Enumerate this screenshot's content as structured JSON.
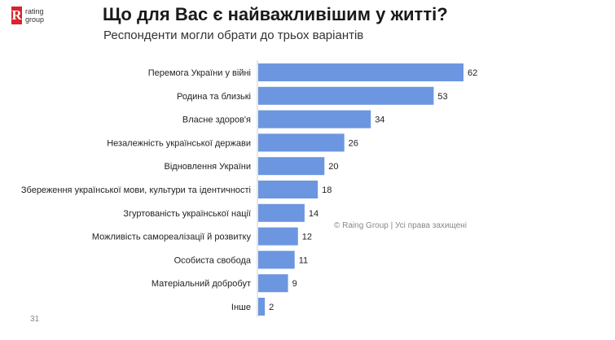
{
  "logo": {
    "mark": "R",
    "text": "rating\ngroup"
  },
  "title": "Що для Вас є найважливішим у житті?",
  "subtitle": "Респонденти могли обрати до трьох варіантів",
  "copyright": "© Raing Group | Усі права захищені",
  "page_number": "31",
  "colors": {
    "bar": "#6c96e0",
    "axis": "#cccccc",
    "logo": "#d9232e"
  },
  "chart_data": {
    "type": "bar",
    "orientation": "horizontal",
    "title": "Що для Вас є найважливішим у житті?",
    "subtitle": "Респонденти могли обрати до трьох варіантів",
    "xlabel": "",
    "ylabel": "",
    "xlim": [
      0,
      62
    ],
    "grid": false,
    "categories": [
      "Перемога України у війні",
      "Родина та близькі",
      "Власне здоров'я",
      "Незалежність української держави",
      "Відновлення України",
      "Збереження української мови, культури та ідентичності",
      "Згуртованість української нації",
      "Можливість самореалізації й розвитку",
      "Особиста свобода",
      "Матеріальний добробут",
      "Інше"
    ],
    "values": [
      62,
      53,
      34,
      26,
      20,
      18,
      14,
      12,
      11,
      9,
      2
    ]
  }
}
